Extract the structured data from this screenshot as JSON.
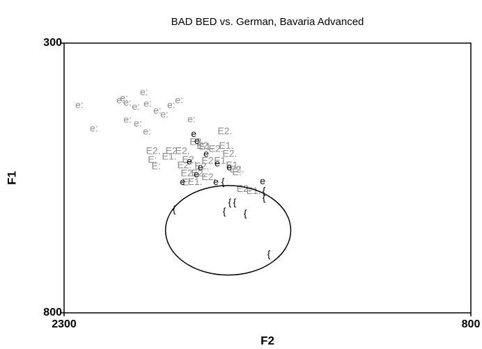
{
  "chart_data": {
    "type": "scatter",
    "title": "BAD BED vs. German, Bavaria Advanced",
    "x_label": "F2",
    "y_label": "F1",
    "xlim": [
      2300,
      800
    ],
    "ylim": [
      300,
      800
    ],
    "xticks": [
      2300,
      800
    ],
    "yticks": [
      300,
      800
    ],
    "series": [
      {
        "name": "e:",
        "color": "#8c8c8c",
        "x": [
          2244,
          2190,
          2092,
          2079,
          2035,
          2066,
          2028,
          1994,
          2005,
          1992,
          1956,
          1930,
          1905,
          1876,
          1830,
          2066
        ],
        "y": [
          416,
          459,
          407,
          403,
          419,
          443,
          450,
          465,
          392,
          413,
          426,
          433,
          416,
          407,
          442,
          411
        ]
      },
      {
        "name": "E2.",
        "color": "#8c8c8c",
        "x": [
          1707,
          1971,
          1899,
          1863,
          1810,
          1784,
          1740,
          1689,
          1838,
          1856,
          1792,
          1766,
          1843,
          1804,
          1766,
          1663,
          1637
        ],
        "y": [
          464,
          501,
          501,
          501,
          484,
          491,
          497,
          506,
          517,
          527,
          529,
          519,
          542,
          542,
          549,
          535,
          571
        ]
      },
      {
        "name": "E1.",
        "color": "#8c8c8c",
        "x": [
          1702,
          1912,
          1776,
          1720,
          1676,
          1601,
          1817
        ],
        "y": [
          491,
          511,
          493,
          519,
          527,
          575,
          558
        ]
      },
      {
        "name": "E:",
        "color": "#8c8c8c",
        "x": [
          1974,
          1961,
          1848,
          1663
        ],
        "y": [
          517,
          529,
          559,
          540
        ]
      },
      {
        "name": "e",
        "color": "#000000",
        "x": [
          1822,
          1810,
          1838,
          1797,
          1812,
          1863,
          1735,
          1691,
          1740,
          1568,
          1776
        ],
        "y": [
          469,
          482,
          520,
          531,
          544,
          558,
          524,
          531,
          558,
          557,
          506
        ]
      },
      {
        "name": "{",
        "color": "#000000",
        "x": [
          1894,
          1709,
          1689,
          1671,
          1632,
          1563,
          1563,
          1714,
          1545
        ],
        "y": [
          609,
          613,
          596,
          596,
          617,
          587,
          575,
          558,
          692
        ]
      }
    ],
    "ellipse": {
      "cx": 1695,
      "cy": 647,
      "rx": 231,
      "ry": 83
    }
  }
}
